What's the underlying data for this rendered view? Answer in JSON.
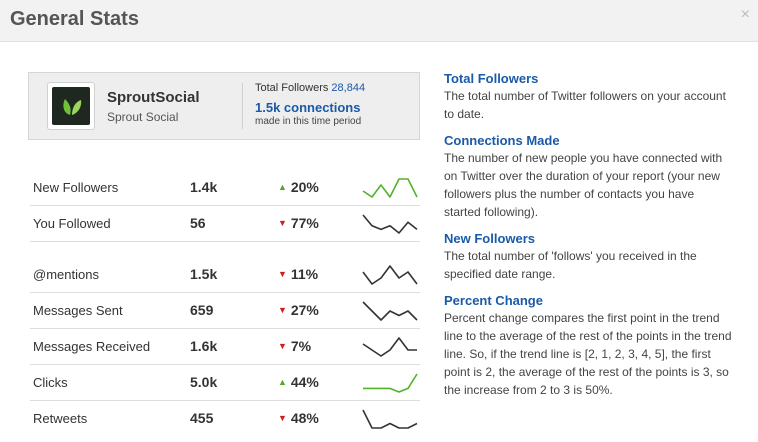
{
  "header": {
    "title": "General Stats",
    "close_label": "×"
  },
  "account": {
    "name": "SproutSocial",
    "handle": "Sprout Social",
    "total_followers_label": "Total Followers",
    "total_followers_value": "28,844",
    "connections": "1.5k connections",
    "connections_sub": "made in this time period"
  },
  "stats": [
    {
      "label": "New Followers",
      "value": "1.4k",
      "direction": "up",
      "change": "20%",
      "trend": [
        3,
        2,
        4,
        2,
        5,
        5,
        2
      ],
      "color": "#52b32a"
    },
    {
      "label": "You Followed",
      "value": "56",
      "direction": "down",
      "change": "77%",
      "trend": [
        5,
        2,
        1,
        2,
        0,
        3,
        1
      ],
      "color": "#333333"
    },
    {
      "label": "@mentions",
      "value": "1.5k",
      "direction": "down",
      "change": "11%",
      "trend": [
        3,
        1,
        2,
        4,
        2,
        3,
        1
      ],
      "color": "#333333"
    },
    {
      "label": "Messages Sent",
      "value": "659",
      "direction": "down",
      "change": "27%",
      "trend": [
        5,
        3,
        1,
        3,
        2,
        3,
        1
      ],
      "color": "#333333"
    },
    {
      "label": "Messages Received",
      "value": "1.6k",
      "direction": "down",
      "change": "7%",
      "trend": [
        3,
        2,
        1,
        2,
        4,
        2,
        2
      ],
      "color": "#333333"
    },
    {
      "label": "Clicks",
      "value": "5.0k",
      "direction": "up",
      "change": "44%",
      "trend": [
        1,
        1,
        1,
        1,
        0,
        1,
        5
      ],
      "color": "#52b32a"
    },
    {
      "label": "Retweets",
      "value": "455",
      "direction": "down",
      "change": "48%",
      "trend": [
        5,
        1,
        1,
        2,
        1,
        1,
        2
      ],
      "color": "#333333"
    }
  ],
  "glossary": [
    {
      "title": "Total Followers",
      "body": "The total number of Twitter followers on your account to date."
    },
    {
      "title": "Connections Made",
      "body": "The number of new people you have connected with on Twitter over the duration of your report (your new followers plus the number of contacts you have started following)."
    },
    {
      "title": "New Followers",
      "body": "The total number of 'follows' you received in the specified date range."
    },
    {
      "title": "Percent Change",
      "body": "Percent change compares the first point in the trend line to the average of the rest of the points in the trend line. So, if the trend line is [2, 1, 2, 3, 4, 5], the first point is 2, the average of the rest of the points is 3, so the increase from 2 to 3 is 50%."
    }
  ]
}
